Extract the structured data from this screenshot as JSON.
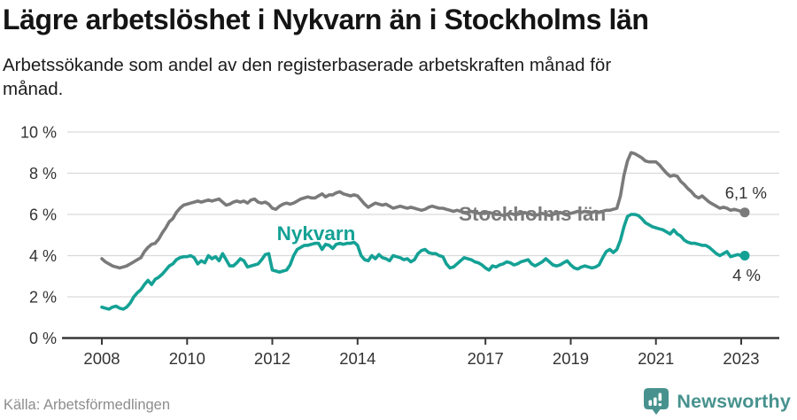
{
  "header": {
    "title": "Lägre arbetslöshet i Nykvarn än i Stockholms län",
    "subtitle_line1": "Arbetssökande som andel av den registerbaserade arbetskraften månad för",
    "subtitle_line2": "månad."
  },
  "footer": {
    "source": "Källa: Arbetsförmedlingen",
    "brand": "Newsworthy"
  },
  "colors": {
    "title": "#141414",
    "subtitle": "#1c1c1c",
    "grid": "#dadada",
    "axis": "#383838",
    "tick_label": "#333333",
    "value_label": "#333333",
    "stockholm_line": "#7a7a7a",
    "nykvarn_line": "#14a195",
    "source_text": "#8d8d8d",
    "brand_teal": "#47928e"
  },
  "chart_data": {
    "type": "line",
    "title": "Lägre arbetslöshet i Nykvarn än i Stockholms län",
    "x_unit": "month",
    "x_range": [
      "2008-01",
      "2023-02"
    ],
    "x_tick_labels": [
      "2008",
      "2010",
      "2012",
      "2014",
      "2017",
      "2019",
      "2021",
      "2023"
    ],
    "ylim": [
      0,
      10
    ],
    "grid": true,
    "y_ticks": [
      {
        "value": 10,
        "label": "10 %"
      },
      {
        "value": 8,
        "label": "8 %"
      },
      {
        "value": 6,
        "label": "6 %"
      },
      {
        "value": 4,
        "label": "4 %"
      },
      {
        "value": 2,
        "label": "2 %"
      },
      {
        "value": 0,
        "label": "0 %"
      }
    ],
    "series": [
      {
        "id": "stockholm",
        "name": "Stockholms län",
        "color": "#7a7a7a",
        "end_label": "6,1 %",
        "values": [
          3.85,
          3.7,
          3.6,
          3.5,
          3.45,
          3.4,
          3.45,
          3.5,
          3.6,
          3.7,
          3.8,
          3.9,
          4.2,
          4.4,
          4.55,
          4.6,
          4.8,
          5.1,
          5.35,
          5.65,
          5.8,
          6.1,
          6.3,
          6.45,
          6.5,
          6.55,
          6.6,
          6.65,
          6.6,
          6.65,
          6.7,
          6.65,
          6.7,
          6.75,
          6.6,
          6.45,
          6.5,
          6.6,
          6.65,
          6.6,
          6.65,
          6.55,
          6.7,
          6.75,
          6.6,
          6.55,
          6.6,
          6.5,
          6.3,
          6.25,
          6.4,
          6.5,
          6.55,
          6.5,
          6.55,
          6.65,
          6.75,
          6.8,
          6.85,
          6.8,
          6.8,
          6.9,
          7.0,
          6.85,
          6.95,
          6.95,
          7.05,
          7.1,
          7.0,
          6.95,
          6.9,
          6.95,
          6.9,
          6.7,
          6.5,
          6.35,
          6.45,
          6.55,
          6.5,
          6.45,
          6.5,
          6.4,
          6.3,
          6.35,
          6.4,
          6.35,
          6.3,
          6.35,
          6.3,
          6.25,
          6.2,
          6.25,
          6.35,
          6.4,
          6.35,
          6.3,
          6.3,
          6.25,
          6.2,
          6.15,
          6.2,
          6.15,
          6.1,
          6.1,
          6.15,
          6.1,
          6.05,
          6.05,
          6.05,
          6.1,
          6.05,
          6.0,
          6.0,
          5.95,
          6.0,
          6.05,
          6.0,
          6.0,
          6.05,
          6.1,
          6.05,
          6.0,
          5.95,
          6.0,
          6.05,
          6.0,
          5.95,
          6.0,
          6.05,
          6.1,
          6.05,
          6.0,
          6.05,
          6.1,
          6.15,
          6.1,
          6.15,
          6.1,
          6.1,
          6.15,
          6.1,
          6.15,
          6.2,
          6.2,
          6.25,
          6.3,
          6.9,
          7.9,
          8.6,
          9.0,
          8.95,
          8.85,
          8.75,
          8.6,
          8.55,
          8.55,
          8.55,
          8.4,
          8.2,
          8.0,
          7.85,
          7.9,
          7.85,
          7.6,
          7.45,
          7.25,
          7.1,
          6.9,
          6.8,
          6.9,
          6.75,
          6.6,
          6.5,
          6.4,
          6.3,
          6.35,
          6.3,
          6.2,
          6.25,
          6.2,
          6.15,
          6.1
        ]
      },
      {
        "id": "nykvarn",
        "name": "Nykvarn",
        "color": "#14a195",
        "end_label": "4 %",
        "values": [
          1.5,
          1.45,
          1.4,
          1.5,
          1.55,
          1.45,
          1.4,
          1.5,
          1.7,
          2.0,
          2.2,
          2.35,
          2.6,
          2.8,
          2.6,
          2.85,
          2.95,
          3.1,
          3.3,
          3.5,
          3.6,
          3.8,
          3.9,
          3.95,
          3.95,
          4.0,
          3.9,
          3.6,
          3.75,
          3.65,
          4.0,
          3.85,
          3.95,
          3.75,
          4.1,
          3.8,
          3.5,
          3.5,
          3.65,
          3.85,
          3.75,
          3.45,
          3.5,
          3.55,
          3.6,
          3.8,
          4.05,
          4.1,
          3.3,
          3.25,
          3.2,
          3.25,
          3.3,
          3.55,
          4.0,
          4.3,
          4.4,
          4.5,
          4.5,
          4.55,
          4.6,
          4.6,
          4.3,
          4.55,
          4.5,
          4.35,
          4.55,
          4.6,
          4.55,
          4.6,
          4.6,
          4.65,
          4.5,
          4.0,
          3.8,
          3.75,
          4.0,
          3.85,
          4.05,
          3.9,
          3.85,
          3.75,
          4.0,
          3.95,
          3.9,
          3.8,
          3.85,
          3.7,
          3.8,
          4.1,
          4.25,
          4.3,
          4.15,
          4.1,
          4.1,
          4.0,
          3.95,
          3.6,
          3.4,
          3.45,
          3.6,
          3.75,
          3.9,
          3.85,
          3.8,
          3.7,
          3.65,
          3.55,
          3.4,
          3.3,
          3.5,
          3.45,
          3.55,
          3.6,
          3.7,
          3.65,
          3.55,
          3.6,
          3.7,
          3.75,
          3.8,
          3.6,
          3.5,
          3.6,
          3.7,
          3.85,
          3.7,
          3.55,
          3.5,
          3.55,
          3.65,
          3.75,
          3.55,
          3.4,
          3.35,
          3.45,
          3.5,
          3.45,
          3.4,
          3.45,
          3.55,
          3.9,
          4.2,
          4.3,
          4.15,
          4.3,
          4.75,
          5.4,
          5.9,
          6.0,
          6.0,
          5.95,
          5.8,
          5.6,
          5.5,
          5.4,
          5.35,
          5.3,
          5.25,
          5.15,
          5.05,
          5.25,
          5.05,
          4.95,
          4.75,
          4.65,
          4.6,
          4.6,
          4.55,
          4.5,
          4.5,
          4.4,
          4.25,
          4.1,
          4.0,
          4.1,
          4.2,
          3.95,
          4.0,
          4.05,
          4.0,
          4.0
        ]
      }
    ]
  }
}
